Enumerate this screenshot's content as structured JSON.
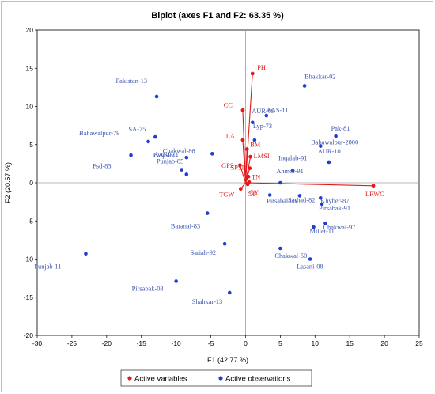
{
  "chart_data": {
    "type": "scatter",
    "title": "Biplot (axes F1 and F2: 63.35 %)",
    "xlabel": "F1 (42.77 %)",
    "ylabel": "F2 (20.57 %)",
    "xlim": [
      -30,
      25
    ],
    "ylim": [
      -20,
      20
    ],
    "xticks": [
      -30,
      -25,
      -20,
      -15,
      -10,
      -5,
      0,
      5,
      10,
      15,
      20,
      25
    ],
    "yticks": [
      -20,
      -15,
      -10,
      -5,
      0,
      5,
      10,
      15,
      20
    ],
    "grid": false,
    "legend_position": "bottom",
    "colors": {
      "variables": "#e31a1c",
      "observations": "#1f3fcf",
      "axis_line": "#a0a0a0"
    },
    "legend": [
      "Active variables",
      "Active observations"
    ],
    "variables": [
      {
        "name": "PH",
        "x": 1.0,
        "y": 14.3
      },
      {
        "name": "CC",
        "x": -0.4,
        "y": 9.5
      },
      {
        "name": "LA",
        "x": -0.4,
        "y": 5.6
      },
      {
        "name": "BM",
        "x": 0.2,
        "y": 4.4
      },
      {
        "name": "LMSI",
        "x": 0.7,
        "y": 3.4
      },
      {
        "name": "GPS",
        "x": -0.8,
        "y": 2.3
      },
      {
        "name": "SPSL",
        "x": 0.6,
        "y": 1.9
      },
      {
        "name": "TN",
        "x": 0.4,
        "y": 0.8
      },
      {
        "name": "GY",
        "x": 0.3,
        "y": -0.2
      },
      {
        "name": "CT",
        "x": 0.5,
        "y": 0.1
      },
      {
        "name": "TGW",
        "x": -0.7,
        "y": -0.8
      },
      {
        "name": "LRWC",
        "x": 18.4,
        "y": -0.4
      }
    ],
    "observations": [
      {
        "name": "Bhakkar-02",
        "x": 8.5,
        "y": 12.7
      },
      {
        "name": "Pakistan-13",
        "x": -12.8,
        "y": 11.3
      },
      {
        "name": "AAS-11",
        "x": 3.0,
        "y": 8.8
      },
      {
        "name": "AUR-09",
        "x": 1.0,
        "y": 7.9
      },
      {
        "name": "Lyp-73",
        "x": 1.3,
        "y": 5.6
      },
      {
        "name": "Pak-81",
        "x": 13.0,
        "y": 6.1
      },
      {
        "name": "SA-75",
        "x": -13.0,
        "y": 6.0
      },
      {
        "name": "Bahawalpur-79",
        "x": -14.0,
        "y": 5.4
      },
      {
        "name": "Bahawalpur-2000",
        "x": 10.8,
        "y": 4.8
      },
      {
        "name": "Fsd-83",
        "x": -16.5,
        "y": 3.6
      },
      {
        "name": "AARI-11",
        "x": -8.5,
        "y": 3.3
      },
      {
        "name": "Chakwal-86",
        "x": -9.2,
        "y": 1.7
      },
      {
        "name": "Bwp-97",
        "x": -8.5,
        "y": 1.1
      },
      {
        "name": "Punjab-85",
        "x": -4.8,
        "y": 3.8
      },
      {
        "name": "AUR-10",
        "x": 12.0,
        "y": 2.7
      },
      {
        "name": "Inqalab-91",
        "x": 6.8,
        "y": 1.6
      },
      {
        "name": "Anmol-91",
        "x": 5.0,
        "y": 0.0
      },
      {
        "name": "Pirsabal-05",
        "x": 3.5,
        "y": -1.6
      },
      {
        "name": "Sarhad-82",
        "x": 7.8,
        "y": -1.7
      },
      {
        "name": "Khyber-87",
        "x": 10.8,
        "y": -2.0
      },
      {
        "name": "Pirsabak-91",
        "x": 11.0,
        "y": -2.8
      },
      {
        "name": "Baranai-83",
        "x": -5.5,
        "y": -4.0
      },
      {
        "name": "Chakwal-97",
        "x": 11.5,
        "y": -5.3
      },
      {
        "name": "Millet-11",
        "x": 9.8,
        "y": -5.8
      },
      {
        "name": "Sariah-92",
        "x": -3.0,
        "y": -8.0
      },
      {
        "name": "Chakwal-50",
        "x": 5.0,
        "y": -8.6
      },
      {
        "name": "Punjab-11",
        "x": -23.0,
        "y": -9.3
      },
      {
        "name": "Lasani-08",
        "x": 9.3,
        "y": -10.0
      },
      {
        "name": "Pirsabak-08",
        "x": -10.0,
        "y": -12.9
      },
      {
        "name": "Shahkar-13",
        "x": -2.3,
        "y": -14.4
      }
    ]
  }
}
